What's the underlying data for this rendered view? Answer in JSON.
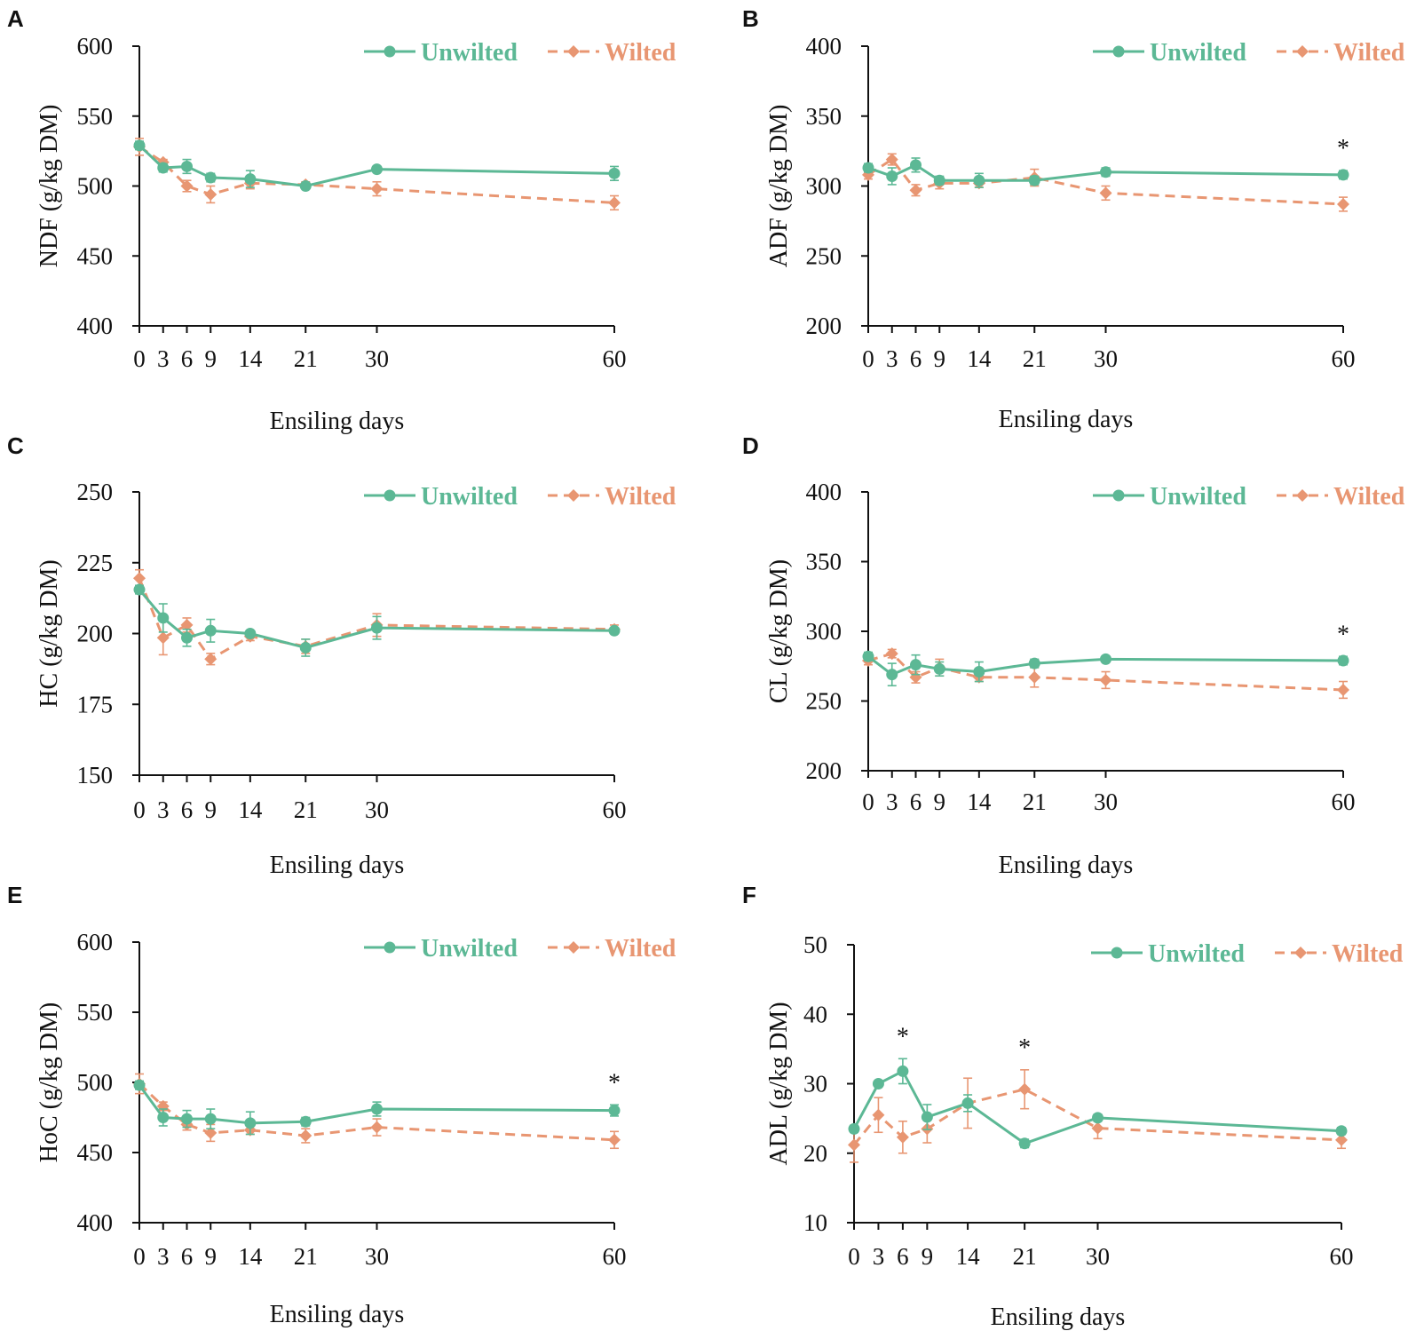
{
  "colors": {
    "unwilted": "#5cb895",
    "wilted": "#e89672",
    "axis": "#111111"
  },
  "chart_data": [
    {
      "panel": "A",
      "type": "line",
      "ylabel": "NDF (g/kg DM)",
      "xlabel": "Ensiling days",
      "ylim": [
        400,
        600
      ],
      "yticks": [
        400,
        450,
        500,
        550,
        600
      ],
      "xlim": [
        0,
        60
      ],
      "xticks": [
        0,
        3,
        6,
        9,
        14,
        21,
        30,
        60
      ],
      "legend": "top-right",
      "series": [
        {
          "name": "Unwilted",
          "x": [
            0,
            3,
            6,
            9,
            14,
            21,
            30,
            60
          ],
          "y": [
            529,
            513,
            514,
            506,
            505,
            500,
            512,
            509
          ],
          "err": [
            3,
            3,
            5,
            3,
            6,
            2,
            2,
            5
          ]
        },
        {
          "name": "Wilted",
          "x": [
            0,
            3,
            6,
            9,
            14,
            21,
            30,
            60
          ],
          "y": [
            528,
            517,
            500,
            494,
            502,
            501,
            498,
            488
          ],
          "err": [
            6,
            2,
            4,
            6,
            4,
            2,
            5,
            5
          ]
        }
      ],
      "annotations": []
    },
    {
      "panel": "B",
      "type": "line",
      "ylabel": "ADF (g/kg DM)",
      "xlabel": "Ensiling days",
      "ylim": [
        200,
        400
      ],
      "yticks": [
        200,
        250,
        300,
        350,
        400
      ],
      "xlim": [
        0,
        60
      ],
      "xticks": [
        0,
        3,
        6,
        9,
        14,
        21,
        30,
        60
      ],
      "legend": "top-right",
      "series": [
        {
          "name": "Unwilted",
          "x": [
            0,
            3,
            6,
            9,
            14,
            21,
            30,
            60
          ],
          "y": [
            313,
            307,
            315,
            304,
            304,
            304,
            310,
            308
          ],
          "err": [
            3,
            6,
            5,
            3,
            5,
            3,
            3,
            3
          ]
        },
        {
          "name": "Wilted",
          "x": [
            0,
            3,
            6,
            9,
            14,
            21,
            30,
            60
          ],
          "y": [
            308,
            319,
            297,
            302,
            302,
            306,
            295,
            287
          ],
          "err": [
            3,
            4,
            4,
            4,
            3,
            6,
            5,
            5
          ]
        }
      ],
      "annotations": [
        {
          "x": 60,
          "text": "*"
        }
      ]
    },
    {
      "panel": "C",
      "type": "line",
      "ylabel": "HC (g/kg DM)",
      "xlabel": "Ensiling days",
      "ylim": [
        150,
        250
      ],
      "yticks": [
        150,
        175,
        200,
        225,
        250
      ],
      "xlim": [
        0,
        60
      ],
      "xticks": [
        0,
        3,
        6,
        9,
        14,
        21,
        30,
        60
      ],
      "legend": "top-right",
      "series": [
        {
          "name": "Unwilted",
          "x": [
            0,
            3,
            6,
            9,
            14,
            21,
            30,
            60
          ],
          "y": [
            215.5,
            205.5,
            198.5,
            201,
            200,
            195,
            202,
            201
          ],
          "err": [
            1.5,
            5,
            3,
            4,
            1,
            3,
            4,
            1
          ]
        },
        {
          "name": "Wilted",
          "x": [
            0,
            3,
            6,
            9,
            14,
            21,
            30,
            60
          ],
          "y": [
            219.5,
            198.5,
            203,
            191,
            199,
            195.5,
            203,
            201.5
          ],
          "err": [
            3,
            6,
            2.5,
            2,
            1.5,
            2.5,
            4,
            1.5
          ]
        }
      ],
      "annotations": []
    },
    {
      "panel": "D",
      "type": "line",
      "ylabel": "CL (g/kg DM)",
      "xlabel": "Ensiling days",
      "ylim": [
        200,
        400
      ],
      "yticks": [
        200,
        250,
        300,
        350,
        400
      ],
      "xlim": [
        0,
        60
      ],
      "xticks": [
        0,
        3,
        6,
        9,
        14,
        21,
        30,
        60
      ],
      "legend": "top-right",
      "series": [
        {
          "name": "Unwilted",
          "x": [
            0,
            3,
            6,
            9,
            14,
            21,
            30,
            60
          ],
          "y": [
            282,
            269,
            276,
            273,
            271,
            277,
            280,
            279
          ],
          "err": [
            3,
            8,
            7,
            5,
            7,
            3,
            2,
            3
          ]
        },
        {
          "name": "Wilted",
          "x": [
            0,
            3,
            6,
            9,
            14,
            21,
            30,
            60
          ],
          "y": [
            279,
            284,
            267,
            274,
            267,
            267,
            265,
            258
          ],
          "err": [
            3,
            3,
            4,
            6,
            3,
            7,
            6,
            6
          ]
        }
      ],
      "annotations": [
        {
          "x": 60,
          "text": "*"
        }
      ]
    },
    {
      "panel": "E",
      "type": "line",
      "ylabel": "HoC (g/kg DM)",
      "xlabel": "Ensiling days",
      "ylim": [
        400,
        600
      ],
      "yticks": [
        400,
        450,
        500,
        550,
        600
      ],
      "xlim": [
        0,
        60
      ],
      "xticks": [
        0,
        3,
        6,
        9,
        14,
        21,
        30,
        60
      ],
      "legend": "top-right",
      "series": [
        {
          "name": "Unwilted",
          "x": [
            0,
            3,
            6,
            9,
            14,
            21,
            30,
            60
          ],
          "y": [
            498,
            475,
            474,
            474,
            471,
            472,
            481,
            480
          ],
          "err": [
            3,
            6,
            6,
            7,
            8,
            3,
            5,
            4
          ]
        },
        {
          "name": "Wilted",
          "x": [
            0,
            3,
            6,
            9,
            14,
            21,
            30,
            60
          ],
          "y": [
            499,
            483,
            470,
            464,
            466,
            462,
            468,
            459
          ],
          "err": [
            7,
            3,
            4,
            6,
            3,
            5,
            6,
            6
          ]
        }
      ],
      "annotations": [
        {
          "x": 60,
          "text": "*"
        }
      ]
    },
    {
      "panel": "F",
      "type": "line",
      "ylabel": "ADL (g/kg DM)",
      "xlabel": "Ensiling days",
      "ylim": [
        10,
        50
      ],
      "yticks": [
        10,
        20,
        30,
        40,
        50
      ],
      "xlim": [
        0,
        60
      ],
      "xticks": [
        0,
        3,
        6,
        9,
        14,
        21,
        30,
        60
      ],
      "legend": "top-right",
      "series": [
        {
          "name": "Unwilted",
          "x": [
            0,
            3,
            6,
            9,
            14,
            21,
            30,
            60
          ],
          "y": [
            23.5,
            30,
            31.8,
            25.2,
            27.2,
            21.4,
            25.1,
            23.2
          ],
          "err": [
            0.5,
            0.4,
            1.8,
            1.8,
            1.2,
            0.6,
            0.5,
            0.5
          ]
        },
        {
          "name": "Wilted",
          "x": [
            0,
            3,
            6,
            9,
            14,
            21,
            30,
            60
          ],
          "y": [
            21.2,
            25.5,
            22.3,
            23.5,
            27.2,
            29.2,
            23.6,
            21.9
          ],
          "err": [
            2.5,
            2.5,
            2.3,
            2,
            3.6,
            2.8,
            1.5,
            1.2
          ]
        }
      ],
      "annotations": [
        {
          "x": 6,
          "text": "*"
        },
        {
          "x": 21,
          "text": "*"
        }
      ]
    }
  ]
}
